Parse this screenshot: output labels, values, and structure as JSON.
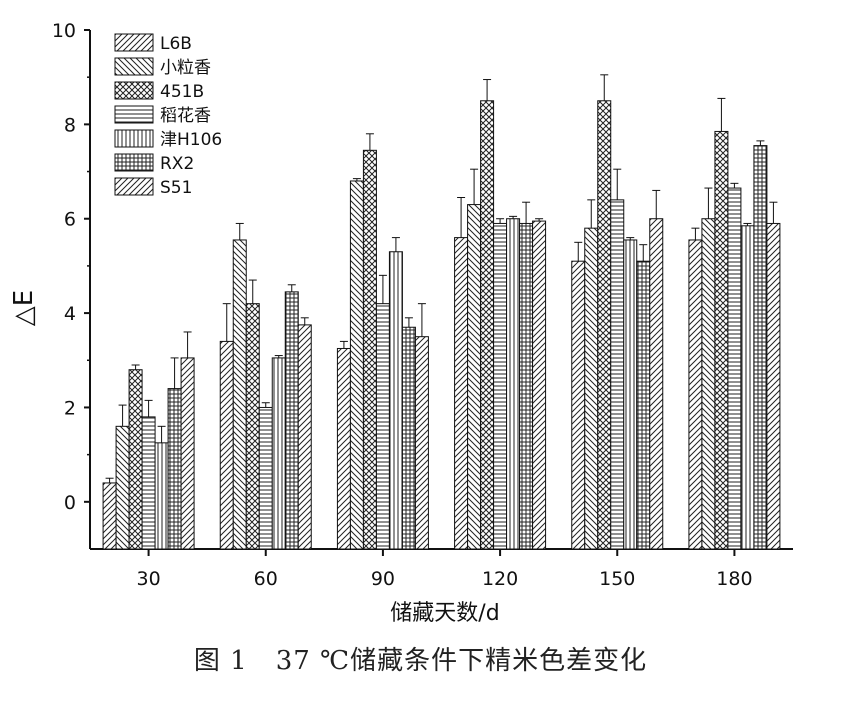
{
  "figure_caption": {
    "label": "图 1",
    "text": "37 ℃储藏条件下精米色差变化"
  },
  "chart_data": {
    "type": "bar",
    "xlabel": "储藏天数/d",
    "ylabel": "△E",
    "ylim": [
      -1,
      10
    ],
    "yticks": [
      0,
      2,
      4,
      6,
      8,
      10
    ],
    "categories": [
      "30",
      "60",
      "90",
      "120",
      "150",
      "180"
    ],
    "legend_position": "top-left",
    "series": [
      {
        "name": "L6B",
        "pattern": "diag-right",
        "values": [
          0.4,
          3.4,
          3.25,
          5.6,
          5.1,
          5.55
        ],
        "errors": [
          0.1,
          0.8,
          0.15,
          0.85,
          0.4,
          0.25
        ]
      },
      {
        "name": "小粒香",
        "pattern": "diag-left",
        "values": [
          1.6,
          5.55,
          6.8,
          6.3,
          5.8,
          6.0
        ],
        "errors": [
          0.45,
          0.35,
          0.05,
          0.75,
          0.6,
          0.65
        ]
      },
      {
        "name": "451B",
        "pattern": "crosshatch",
        "values": [
          2.8,
          4.2,
          7.45,
          8.5,
          8.5,
          7.85
        ],
        "errors": [
          0.1,
          0.5,
          0.35,
          0.45,
          0.55,
          0.7
        ]
      },
      {
        "name": "稻花香",
        "pattern": "horizontal",
        "values": [
          1.8,
          2.0,
          4.2,
          5.9,
          6.4,
          6.65
        ],
        "errors": [
          0.35,
          0.1,
          0.6,
          0.1,
          0.65,
          0.1
        ]
      },
      {
        "name": "津H106",
        "pattern": "vertical",
        "values": [
          1.25,
          3.05,
          5.3,
          6.0,
          5.55,
          5.85
        ],
        "errors": [
          0.35,
          0.05,
          0.3,
          0.05,
          0.05,
          0.05
        ]
      },
      {
        "name": "RX2",
        "pattern": "grid",
        "values": [
          2.4,
          4.45,
          3.7,
          5.9,
          5.1,
          7.55
        ],
        "errors": [
          0.65,
          0.15,
          0.2,
          0.45,
          0.35,
          0.1
        ]
      },
      {
        "name": "S51",
        "pattern": "diag-right",
        "values": [
          3.05,
          3.75,
          3.5,
          5.95,
          6.0,
          5.9
        ],
        "errors": [
          0.55,
          0.15,
          0.7,
          0.05,
          0.6,
          0.45
        ]
      }
    ]
  }
}
